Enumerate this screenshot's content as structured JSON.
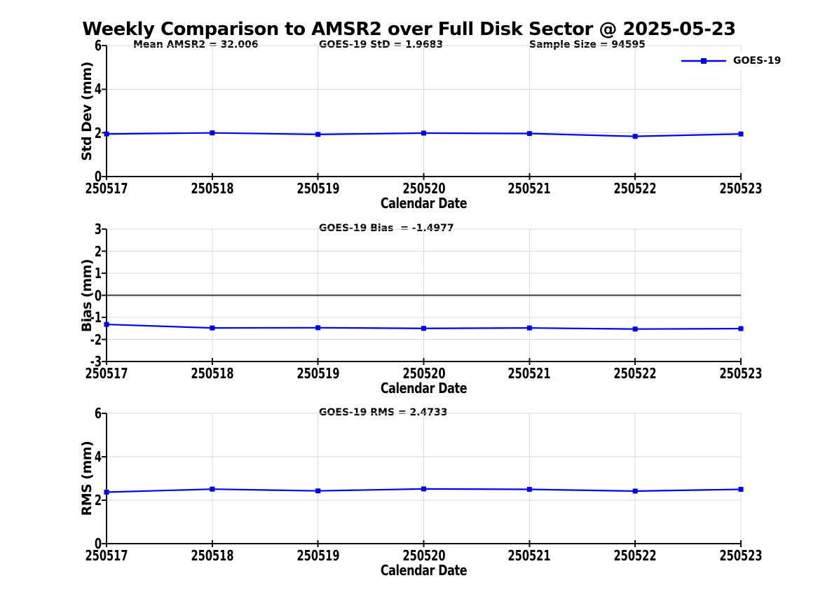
{
  "title": "Weekly Comparison to AMSR2 over Full Disk Sector @ 2025-05-23",
  "legend": {
    "label": "GOES-19",
    "marker": "filled-square"
  },
  "colors": {
    "line": "#0000ee",
    "marker": "#0000ee",
    "grid": "#d9d9d9",
    "zero_line": "#3c3c3c",
    "axis": "#111111",
    "text": "#000000",
    "background": "#ffffff"
  },
  "chart_data": [
    {
      "type": "line",
      "panel": "std-dev",
      "categories": [
        "250517",
        "250518",
        "250519",
        "250520",
        "250521",
        "250522",
        "250523"
      ],
      "series": [
        {
          "name": "GOES-19",
          "values": [
            1.95,
            2.0,
            1.93,
            1.99,
            1.97,
            1.84,
            1.95
          ]
        }
      ],
      "xlabel": "Calendar Date",
      "ylabel": "Std Dev (mm)",
      "ylim": [
        0,
        6
      ],
      "yticks": [
        0,
        2,
        4,
        6
      ],
      "grid": true,
      "legend_position": "top-right",
      "annotations": [
        {
          "text": "Mean AMSR2 = 32.006"
        },
        {
          "text": "GOES-19 StD = 1.9683"
        },
        {
          "text": "Sample Size = 94595"
        }
      ]
    },
    {
      "type": "line",
      "panel": "bias",
      "categories": [
        "250517",
        "250518",
        "250519",
        "250520",
        "250521",
        "250522",
        "250523"
      ],
      "series": [
        {
          "name": "GOES-19",
          "values": [
            -1.32,
            -1.48,
            -1.47,
            -1.5,
            -1.48,
            -1.53,
            -1.51
          ]
        }
      ],
      "xlabel": "Calendar Date",
      "ylabel": "Bias (mm)",
      "ylim": [
        -3,
        3
      ],
      "yticks": [
        -3,
        -2,
        -1,
        0,
        1,
        2,
        3
      ],
      "zero_line": true,
      "grid": true,
      "annotations": [
        {
          "text": "GOES-19 Bias  = -1.4977"
        }
      ]
    },
    {
      "type": "line",
      "panel": "rms",
      "categories": [
        "250517",
        "250518",
        "250519",
        "250520",
        "250521",
        "250522",
        "250523"
      ],
      "series": [
        {
          "name": "GOES-19",
          "values": [
            2.37,
            2.51,
            2.43,
            2.52,
            2.5,
            2.42,
            2.5
          ]
        }
      ],
      "xlabel": "Calendar Date",
      "ylabel": "RMS (mm)",
      "ylim": [
        0,
        6
      ],
      "yticks": [
        0,
        2,
        4,
        6
      ],
      "grid": true,
      "annotations": [
        {
          "text": "GOES-19 RMS = 2.4733"
        }
      ]
    }
  ]
}
